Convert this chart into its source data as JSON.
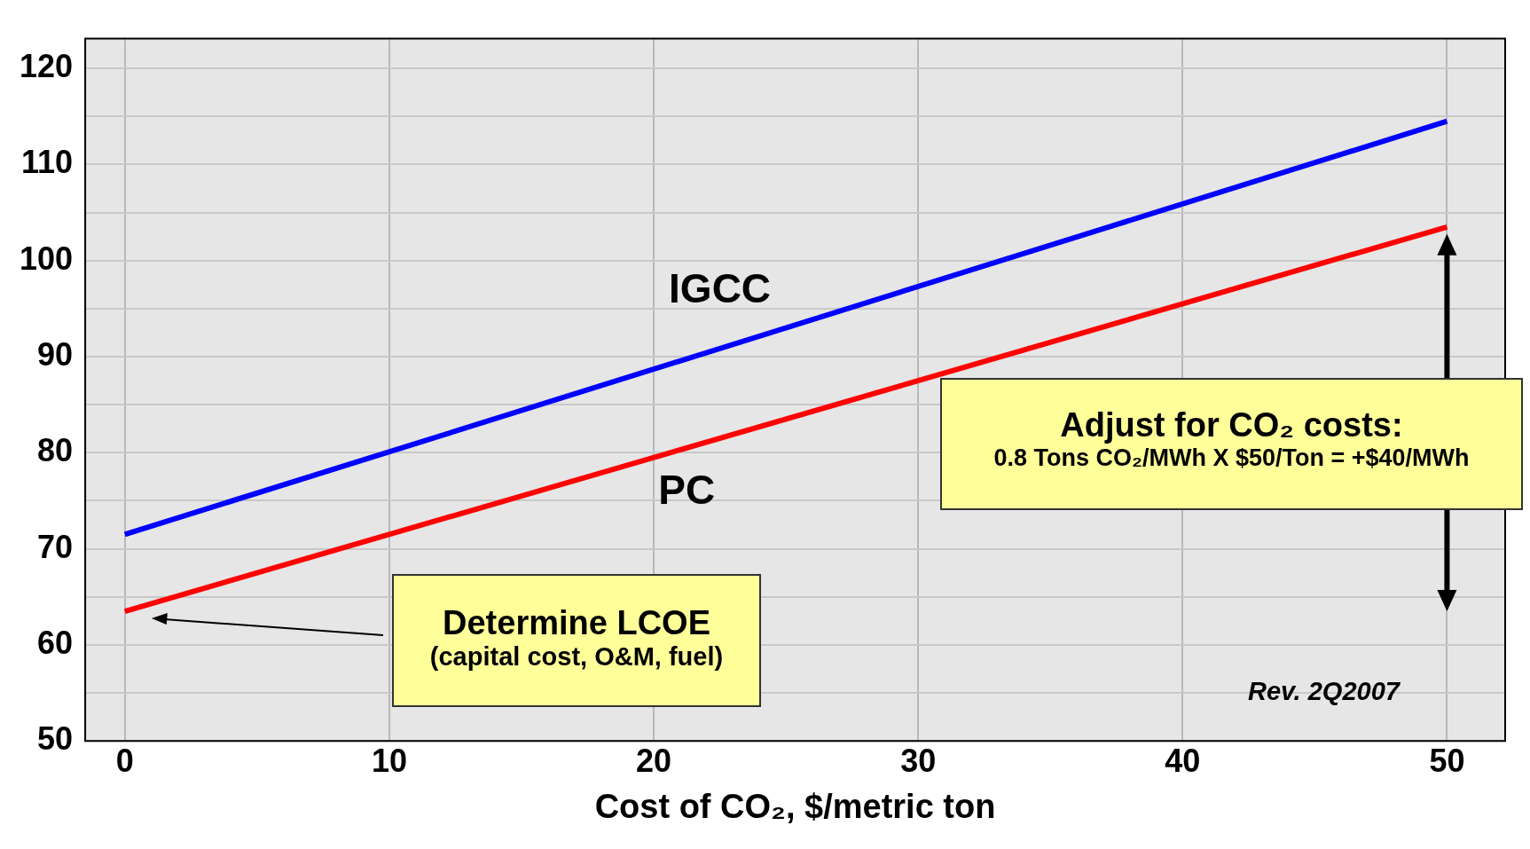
{
  "chart_data": {
    "type": "line",
    "xlabel": "Cost of CO₂, $/metric ton",
    "x": [
      0,
      50
    ],
    "series": [
      {
        "name": "IGCC",
        "color": "#0000ff",
        "values": [
          71.5,
          114.5
        ]
      },
      {
        "name": "PC",
        "color": "#ff0000",
        "values": [
          63.5,
          103.5
        ]
      }
    ],
    "xlim": [
      -1.5,
      52.2
    ],
    "ylim": [
      50,
      123.1
    ],
    "xticks": [
      0,
      10,
      20,
      30,
      40,
      50
    ],
    "yticks": [
      50,
      {
        "value": 55,
        "label": null
      },
      60,
      {
        "value": 65,
        "label": null
      },
      70,
      {
        "value": 75,
        "label": null
      },
      80,
      {
        "value": 85,
        "label": null
      },
      90,
      {
        "value": 95,
        "label": null
      },
      100,
      {
        "value": 105,
        "label": null
      },
      110,
      {
        "value": 115,
        "label": null
      },
      120
    ],
    "grid": true,
    "legend": false,
    "marker": "none",
    "line_style": "solid",
    "annotations": [
      "Determine LCOE\n(capital cost, O&M, fuel)",
      "Adjust for CO₂ costs:\n0.8 Tons CO₂/MWh X $50/Ton = +$40/MWh",
      "Rev. 2Q2007"
    ]
  }
}
